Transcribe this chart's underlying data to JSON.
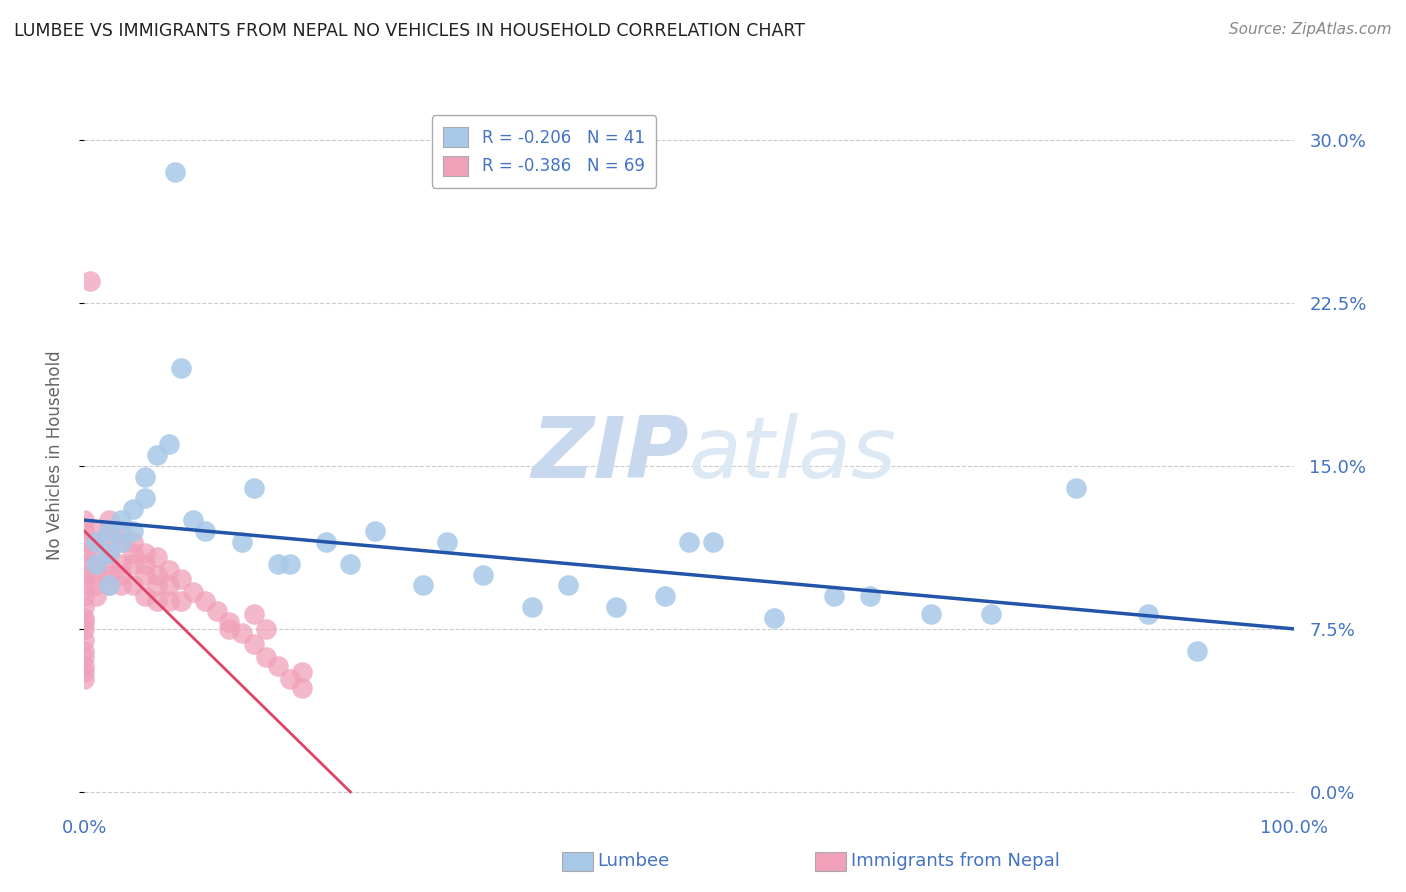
{
  "title": "LUMBEE VS IMMIGRANTS FROM NEPAL NO VEHICLES IN HOUSEHOLD CORRELATION CHART",
  "source": "Source: ZipAtlas.com",
  "ylabel": "No Vehicles in Household",
  "lumbee_label": "Lumbee",
  "nepal_label": "Immigrants from Nepal",
  "ytick_values": [
    0.0,
    0.075,
    0.15,
    0.225,
    0.3
  ],
  "ytick_labels": [
    "0.0%",
    "7.5%",
    "15.0%",
    "22.5%",
    "30.0%"
  ],
  "xlim": [
    0.0,
    1.0
  ],
  "ylim": [
    -0.005,
    0.315
  ],
  "lumbee_R": -0.206,
  "lumbee_N": 41,
  "nepal_R": -0.386,
  "nepal_N": 69,
  "background_color": "#ffffff",
  "grid_color": "#cccccc",
  "lumbee_color": "#a8c8e8",
  "nepal_color": "#f0a0b8",
  "lumbee_line_color": "#2255aa",
  "nepal_line_color": "#dd4466",
  "watermark_color": "#dde8f5",
  "title_color": "#222222",
  "axis_label_color": "#4472c4",
  "lumbee_x": [
    0.075,
    0.02,
    0.01,
    0.02,
    0.03,
    0.01,
    0.04,
    0.02,
    0.05,
    0.03,
    0.04,
    0.06,
    0.08,
    0.05,
    0.07,
    0.09,
    0.1,
    0.13,
    0.16,
    0.14,
    0.17,
    0.2,
    0.22,
    0.24,
    0.28,
    0.3,
    0.33,
    0.37,
    0.4,
    0.44,
    0.48,
    0.52,
    0.57,
    0.62,
    0.65,
    0.7,
    0.75,
    0.82,
    0.88,
    0.92,
    0.5
  ],
  "lumbee_y": [
    0.285,
    0.12,
    0.105,
    0.095,
    0.125,
    0.115,
    0.13,
    0.11,
    0.145,
    0.115,
    0.12,
    0.155,
    0.195,
    0.135,
    0.16,
    0.125,
    0.12,
    0.115,
    0.105,
    0.14,
    0.105,
    0.115,
    0.105,
    0.12,
    0.095,
    0.115,
    0.1,
    0.085,
    0.095,
    0.085,
    0.09,
    0.115,
    0.08,
    0.09,
    0.09,
    0.082,
    0.082,
    0.14,
    0.082,
    0.065,
    0.115
  ],
  "nepal_x": [
    0.005,
    0.0,
    0.0,
    0.0,
    0.0,
    0.0,
    0.0,
    0.0,
    0.0,
    0.0,
    0.0,
    0.0,
    0.0,
    0.0,
    0.0,
    0.0,
    0.0,
    0.0,
    0.0,
    0.01,
    0.01,
    0.01,
    0.01,
    0.01,
    0.01,
    0.01,
    0.02,
    0.02,
    0.02,
    0.02,
    0.02,
    0.02,
    0.02,
    0.03,
    0.03,
    0.03,
    0.03,
    0.03,
    0.04,
    0.04,
    0.04,
    0.04,
    0.05,
    0.05,
    0.05,
    0.05,
    0.06,
    0.06,
    0.06,
    0.06,
    0.07,
    0.07,
    0.07,
    0.08,
    0.08,
    0.09,
    0.1,
    0.11,
    0.12,
    0.13,
    0.14,
    0.15,
    0.16,
    0.17,
    0.18,
    0.14,
    0.15,
    0.12,
    0.18
  ],
  "nepal_y": [
    0.235,
    0.125,
    0.12,
    0.115,
    0.11,
    0.105,
    0.1,
    0.095,
    0.09,
    0.085,
    0.08,
    0.078,
    0.075,
    0.07,
    0.065,
    0.062,
    0.058,
    0.055,
    0.052,
    0.12,
    0.115,
    0.11,
    0.105,
    0.1,
    0.095,
    0.09,
    0.125,
    0.12,
    0.115,
    0.11,
    0.105,
    0.1,
    0.095,
    0.12,
    0.115,
    0.105,
    0.1,
    0.095,
    0.115,
    0.11,
    0.105,
    0.095,
    0.11,
    0.105,
    0.1,
    0.09,
    0.108,
    0.1,
    0.095,
    0.088,
    0.102,
    0.095,
    0.088,
    0.098,
    0.088,
    0.092,
    0.088,
    0.083,
    0.078,
    0.073,
    0.068,
    0.062,
    0.058,
    0.052,
    0.048,
    0.082,
    0.075,
    0.075,
    0.055
  ]
}
